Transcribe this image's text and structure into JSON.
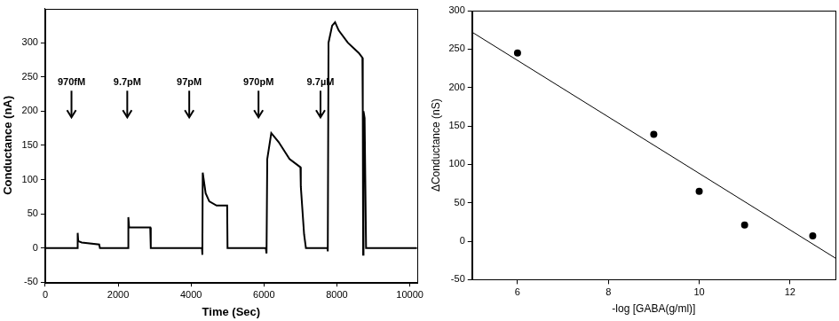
{
  "chart_data": [
    {
      "type": "line",
      "x_label": "Time (Sec)",
      "y_label": "Conductance (nA)",
      "xlim": [
        0,
        10200
      ],
      "xticks": [
        0,
        2000,
        4000,
        6000,
        8000,
        10000
      ],
      "ylim": [
        -50,
        350
      ],
      "yticks": [
        -50,
        0,
        50,
        100,
        150,
        200,
        250,
        300
      ],
      "grid": false,
      "series": [
        {
          "color": "#000000",
          "line_style": "solid",
          "marker": "none",
          "x": [
            0,
            880,
            890,
            905,
            1000,
            1480,
            1500,
            2270,
            2280,
            2300,
            2880,
            2895,
            4300,
            4310,
            4320,
            4400,
            4500,
            4700,
            4990,
            5000,
            6050,
            6070,
            6090,
            6200,
            6400,
            6700,
            7000,
            7010,
            7100,
            7150,
            7740,
            7750,
            7770,
            7870,
            7950,
            8050,
            8300,
            8600,
            8700,
            8710,
            8720,
            8730,
            8760,
            8800,
            10200
          ],
          "values": [
            0,
            0,
            22,
            10,
            8,
            5,
            0,
            0,
            45,
            30,
            30,
            0,
            0,
            -10,
            110,
            80,
            68,
            62,
            62,
            0,
            0,
            -8,
            130,
            168,
            155,
            130,
            118,
            90,
            20,
            0,
            0,
            -5,
            300,
            325,
            330,
            318,
            300,
            285,
            278,
            200,
            -10,
            200,
            190,
            0,
            0
          ]
        }
      ],
      "annotations": [
        {
          "text": "970fM",
          "x": 720,
          "y": 235
        },
        {
          "text": "9.7pM",
          "x": 2250,
          "y": 235
        },
        {
          "text": "97pM",
          "x": 3950,
          "y": 235
        },
        {
          "text": "970pM",
          "x": 5850,
          "y": 235
        },
        {
          "text": "9.7µM",
          "x": 7550,
          "y": 235
        }
      ]
    },
    {
      "type": "scatter",
      "x_label": "-log [GABA(g/ml)]",
      "y_label": "ΔConductance (nS)",
      "xlim": [
        5,
        13
      ],
      "xticks": [
        6,
        8,
        10,
        12
      ],
      "ylim": [
        -50,
        300
      ],
      "yticks": [
        -50,
        0,
        50,
        100,
        150,
        200,
        250,
        300
      ],
      "grid": false,
      "series": [
        {
          "color": "#000000",
          "marker": "circle",
          "line_style": "none",
          "x": [
            6,
            9,
            10,
            11,
            12.5
          ],
          "values": [
            245,
            139,
            65,
            21,
            7
          ]
        },
        {
          "color": "#000000",
          "marker": "none",
          "line_style": "solid",
          "x": [
            5,
            13
          ],
          "values": [
            272,
            -22
          ]
        }
      ]
    }
  ]
}
